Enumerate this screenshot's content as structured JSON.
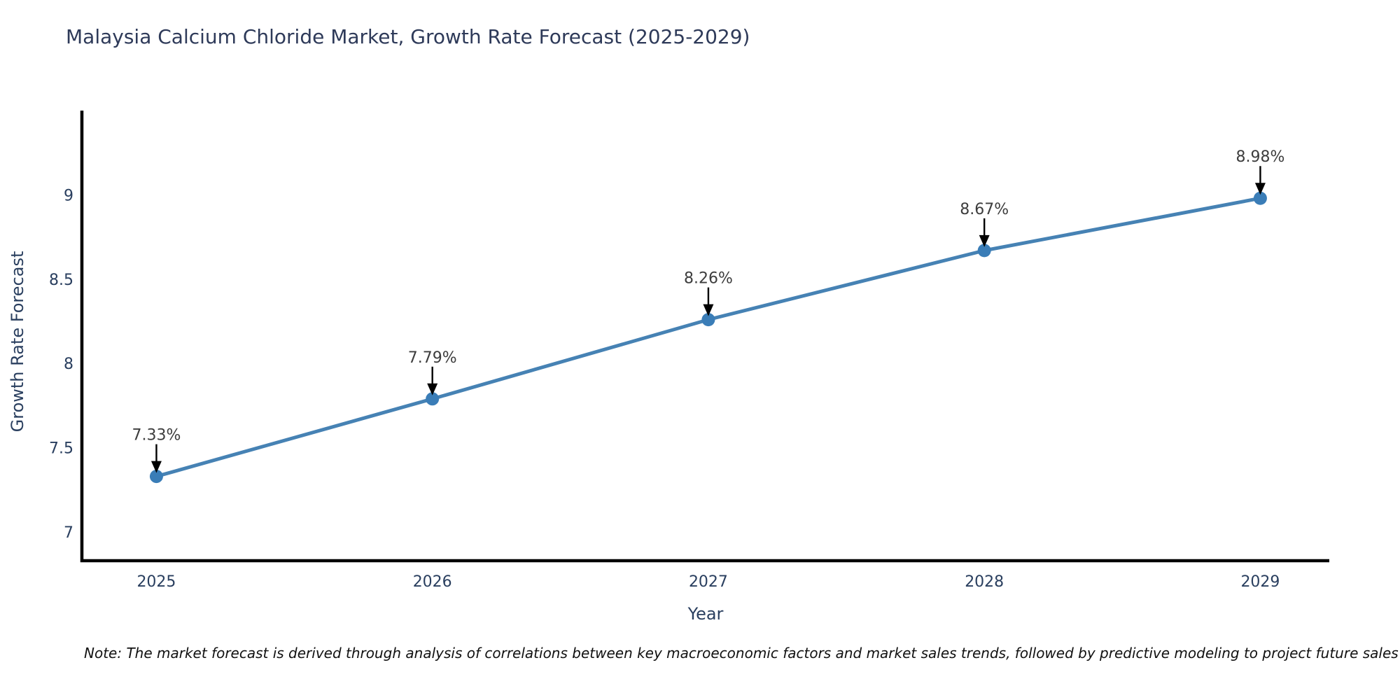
{
  "chart": {
    "title": "Malaysia Calcium Chloride Market, Growth Rate Forecast (2025-2029)",
    "xlabel": "Year",
    "ylabel": "Growth Rate Forecast",
    "note": "Note: The market forecast is derived through analysis of correlations between key macroeconomic factors and market sales trends, followed by predictive modeling to project future sales"
  },
  "chart_data": {
    "type": "line",
    "title": "Malaysia Calcium Chloride Market, Growth Rate Forecast (2025-2029)",
    "xlabel": "Year",
    "ylabel": "Growth Rate Forecast",
    "x": [
      2025,
      2026,
      2027,
      2028,
      2029
    ],
    "values": [
      7.33,
      7.79,
      8.26,
      8.67,
      8.98
    ],
    "point_labels": [
      "7.33%",
      "7.79%",
      "8.26%",
      "8.67%",
      "8.98%"
    ],
    "xtick_labels": [
      "2025",
      "2026",
      "2027",
      "2028",
      "2029"
    ],
    "yticks": [
      7,
      7.5,
      8,
      8.5,
      9
    ],
    "ytick_labels": [
      "7",
      "7.5",
      "8",
      "8.5",
      "9"
    ],
    "xlim": [
      2024.73,
      2029.25
    ],
    "ylim": [
      6.83,
      9.5
    ],
    "grid": false,
    "legend": "none",
    "marker_style": "circle",
    "annotation_arrows": true,
    "colors": {
      "line": "#4682b4",
      "marker": "#3a7db7",
      "arrow": "#000000",
      "axis": "#000000",
      "tick_text": "#2a3f5f",
      "annotation_text": "#3d3d3d",
      "background": "#ffffff"
    }
  }
}
